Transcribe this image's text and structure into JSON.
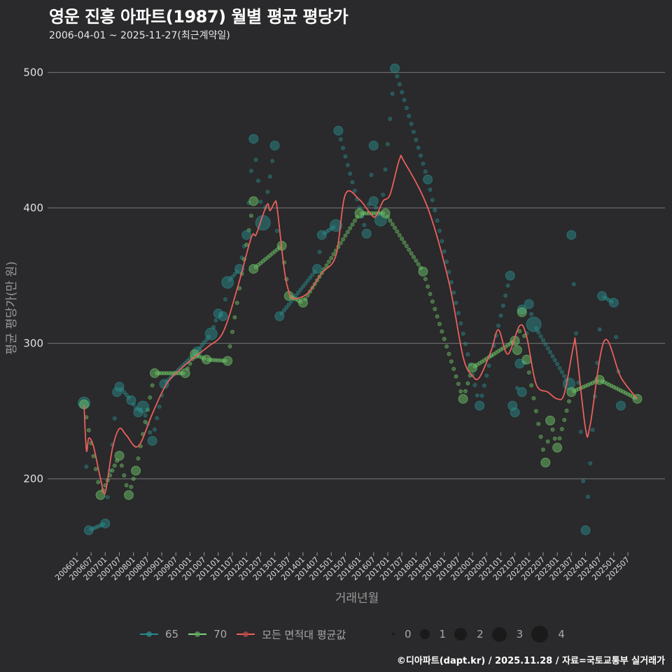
{
  "header": {
    "title": "영운 진흥 아파트(1987) 월별 평균 평당가",
    "subtitle": "2006-04-01 ~ 2025-11-27(최근계약일)"
  },
  "axes": {
    "y_title": "평균 평당가(만 원)",
    "x_title": "거래년월",
    "y_ticks": [
      "200",
      "300",
      "400",
      "500"
    ],
    "x_ticks": [
      "200601",
      "200607",
      "200701",
      "200707",
      "200801",
      "200807",
      "200901",
      "200907",
      "201001",
      "201007",
      "201101",
      "201107",
      "201201",
      "201207",
      "201301",
      "201307",
      "201401",
      "201407",
      "201501",
      "201507",
      "201601",
      "201607",
      "201701",
      "201707",
      "201801",
      "201807",
      "201901",
      "201907",
      "202001",
      "202007",
      "202101",
      "202107",
      "202201",
      "202207",
      "202301",
      "202307",
      "202401",
      "202407",
      "202501",
      "202507"
    ]
  },
  "legend": {
    "series": [
      {
        "label": "65",
        "color": "#2a8a8a"
      },
      {
        "label": "70",
        "color": "#7fd07a"
      },
      {
        "label": "모든 면적대 평균값",
        "color": "#e8605c"
      }
    ],
    "sizes": [
      "0",
      "1",
      "2",
      "3",
      "4"
    ]
  },
  "footer": {
    "credit": "©디아파트(dapt.kr) / 2025.11.28 / 자료=국토교통부 실거래가"
  },
  "colors": {
    "background": "#2a292b",
    "grid": "#6a6a6a",
    "series_65": "#2a8a8a",
    "series_70": "#7fd07a",
    "average": "#e8605c"
  },
  "chart_data": {
    "type": "scatter",
    "title": "영운 진흥 아파트(1987) 월별 평균 평당가",
    "subtitle": "2006-04-01 ~ 2025-11-27(최근계약일)",
    "xlabel": "거래년월",
    "ylabel": "평균 평당가(만 원)",
    "ylim": [
      145,
      515
    ],
    "y_ticks": [
      200,
      300,
      400,
      500
    ],
    "grid": true,
    "legend_position": "bottom",
    "size_legend": [
      0,
      1,
      2,
      3,
      4
    ],
    "series": [
      {
        "name": "65",
        "color": "#2a8a8a",
        "points": [
          {
            "x": "2006-04",
            "y": 256,
            "size": 2
          },
          {
            "x": "2006-06",
            "y": 162,
            "size": 1
          },
          {
            "x": "2007-01",
            "y": 167,
            "size": 1
          },
          {
            "x": "2007-06",
            "y": 264,
            "size": 1
          },
          {
            "x": "2007-07",
            "y": 268,
            "size": 1
          },
          {
            "x": "2007-12",
            "y": 258,
            "size": 1
          },
          {
            "x": "2008-03",
            "y": 249,
            "size": 1
          },
          {
            "x": "2008-05",
            "y": 253,
            "size": 2
          },
          {
            "x": "2008-09",
            "y": 228,
            "size": 1
          },
          {
            "x": "2009-02",
            "y": 270,
            "size": 1
          },
          {
            "x": "2010-04",
            "y": 294,
            "size": 1
          },
          {
            "x": "2010-10",
            "y": 307,
            "size": 2
          },
          {
            "x": "2011-01",
            "y": 322,
            "size": 1
          },
          {
            "x": "2011-03",
            "y": 320,
            "size": 1
          },
          {
            "x": "2011-05",
            "y": 345,
            "size": 2
          },
          {
            "x": "2011-10",
            "y": 355,
            "size": 1
          },
          {
            "x": "2012-01",
            "y": 380,
            "size": 1
          },
          {
            "x": "2012-04",
            "y": 451,
            "size": 1
          },
          {
            "x": "2012-08",
            "y": 389,
            "size": 3
          },
          {
            "x": "2013-01",
            "y": 446,
            "size": 1
          },
          {
            "x": "2013-03",
            "y": 320,
            "size": 1
          },
          {
            "x": "2014-07",
            "y": 355,
            "size": 1
          },
          {
            "x": "2014-09",
            "y": 380,
            "size": 1
          },
          {
            "x": "2015-03",
            "y": 387,
            "size": 2
          },
          {
            "x": "2015-04",
            "y": 457,
            "size": 1
          },
          {
            "x": "2016-04",
            "y": 381,
            "size": 1
          },
          {
            "x": "2016-07",
            "y": 446,
            "size": 1
          },
          {
            "x": "2016-07",
            "y": 405,
            "size": 1
          },
          {
            "x": "2016-10",
            "y": 391,
            "size": 2
          },
          {
            "x": "2017-04",
            "y": 503,
            "size": 1
          },
          {
            "x": "2018-06",
            "y": 421,
            "size": 1
          },
          {
            "x": "2020-04",
            "y": 254,
            "size": 1
          },
          {
            "x": "2021-05",
            "y": 350,
            "size": 1
          },
          {
            "x": "2021-06",
            "y": 254,
            "size": 1
          },
          {
            "x": "2021-07",
            "y": 249,
            "size": 1
          },
          {
            "x": "2021-09",
            "y": 285,
            "size": 1
          },
          {
            "x": "2021-10",
            "y": 325,
            "size": 1
          },
          {
            "x": "2021-10",
            "y": 264,
            "size": 1
          },
          {
            "x": "2022-01",
            "y": 329,
            "size": 1
          },
          {
            "x": "2022-03",
            "y": 314,
            "size": 3
          },
          {
            "x": "2023-06",
            "y": 270,
            "size": 2
          },
          {
            "x": "2023-07",
            "y": 380,
            "size": 1
          },
          {
            "x": "2024-01",
            "y": 162,
            "size": 1
          },
          {
            "x": "2024-08",
            "y": 335,
            "size": 1
          },
          {
            "x": "2025-01",
            "y": 330,
            "size": 1
          },
          {
            "x": "2025-04",
            "y": 254,
            "size": 1
          }
        ]
      },
      {
        "name": "70",
        "color": "#7fd07a",
        "points": [
          {
            "x": "2006-04",
            "y": 255,
            "size": 1
          },
          {
            "x": "2006-11",
            "y": 188,
            "size": 1
          },
          {
            "x": "2007-07",
            "y": 217,
            "size": 1
          },
          {
            "x": "2007-11",
            "y": 188,
            "size": 1
          },
          {
            "x": "2008-02",
            "y": 206,
            "size": 1
          },
          {
            "x": "2008-10",
            "y": 278,
            "size": 1
          },
          {
            "x": "2009-11",
            "y": 278,
            "size": 1
          },
          {
            "x": "2010-03",
            "y": 292,
            "size": 1
          },
          {
            "x": "2010-08",
            "y": 288,
            "size": 1
          },
          {
            "x": "2011-05",
            "y": 287,
            "size": 1
          },
          {
            "x": "2012-04",
            "y": 405,
            "size": 1
          },
          {
            "x": "2012-04",
            "y": 355,
            "size": 1
          },
          {
            "x": "2013-04",
            "y": 372,
            "size": 1
          },
          {
            "x": "2013-07",
            "y": 335,
            "size": 1
          },
          {
            "x": "2014-01",
            "y": 330,
            "size": 1
          },
          {
            "x": "2016-01",
            "y": 396,
            "size": 1
          },
          {
            "x": "2016-12",
            "y": 396,
            "size": 1
          },
          {
            "x": "2018-04",
            "y": 353,
            "size": 1
          },
          {
            "x": "2019-09",
            "y": 259,
            "size": 1
          },
          {
            "x": "2020-01",
            "y": 282,
            "size": 1
          },
          {
            "x": "2021-07",
            "y": 302,
            "size": 1
          },
          {
            "x": "2021-08",
            "y": 295,
            "size": 1
          },
          {
            "x": "2021-10",
            "y": 323,
            "size": 1
          },
          {
            "x": "2021-12",
            "y": 288,
            "size": 1
          },
          {
            "x": "2022-08",
            "y": 212,
            "size": 1
          },
          {
            "x": "2022-10",
            "y": 243,
            "size": 1
          },
          {
            "x": "2023-01",
            "y": 223,
            "size": 1
          },
          {
            "x": "2023-07",
            "y": 264,
            "size": 1
          },
          {
            "x": "2024-07",
            "y": 273,
            "size": 1
          },
          {
            "x": "2025-11",
            "y": 259,
            "size": 1
          }
        ]
      },
      {
        "name": "모든 면적대 평균값",
        "color": "#e8605c",
        "type": "line",
        "points": [
          {
            "x": "2006-04",
            "y": 254
          },
          {
            "x": "2006-05",
            "y": 221
          },
          {
            "x": "2006-06",
            "y": 230
          },
          {
            "x": "2006-08",
            "y": 224
          },
          {
            "x": "2006-11",
            "y": 200
          },
          {
            "x": "2007-01",
            "y": 190
          },
          {
            "x": "2007-04",
            "y": 222
          },
          {
            "x": "2007-07",
            "y": 237
          },
          {
            "x": "2007-10",
            "y": 232
          },
          {
            "x": "2008-03",
            "y": 224
          },
          {
            "x": "2008-09",
            "y": 248
          },
          {
            "x": "2009-03",
            "y": 270
          },
          {
            "x": "2009-09",
            "y": 281
          },
          {
            "x": "2010-03",
            "y": 290
          },
          {
            "x": "2010-09",
            "y": 298
          },
          {
            "x": "2011-03",
            "y": 308
          },
          {
            "x": "2011-09",
            "y": 340
          },
          {
            "x": "2012-03",
            "y": 378
          },
          {
            "x": "2012-05",
            "y": 380
          },
          {
            "x": "2012-08",
            "y": 395
          },
          {
            "x": "2012-10",
            "y": 403
          },
          {
            "x": "2012-11",
            "y": 398
          },
          {
            "x": "2013-01",
            "y": 404
          },
          {
            "x": "2013-02",
            "y": 400
          },
          {
            "x": "2013-05",
            "y": 355
          },
          {
            "x": "2013-07",
            "y": 338
          },
          {
            "x": "2013-09",
            "y": 333
          },
          {
            "x": "2014-03",
            "y": 337
          },
          {
            "x": "2014-09",
            "y": 352
          },
          {
            "x": "2015-03",
            "y": 365
          },
          {
            "x": "2015-07",
            "y": 410
          },
          {
            "x": "2016-01",
            "y": 406
          },
          {
            "x": "2016-06",
            "y": 395
          },
          {
            "x": "2016-08",
            "y": 394
          },
          {
            "x": "2016-11",
            "y": 405
          },
          {
            "x": "2017-02",
            "y": 410
          },
          {
            "x": "2017-06",
            "y": 436
          },
          {
            "x": "2017-08",
            "y": 434
          },
          {
            "x": "2018-06",
            "y": 400
          },
          {
            "x": "2019-03",
            "y": 345
          },
          {
            "x": "2019-09",
            "y": 290
          },
          {
            "x": "2020-01",
            "y": 276
          },
          {
            "x": "2020-04",
            "y": 275
          },
          {
            "x": "2020-09",
            "y": 295
          },
          {
            "x": "2020-12",
            "y": 310
          },
          {
            "x": "2021-04",
            "y": 292
          },
          {
            "x": "2021-09",
            "y": 313
          },
          {
            "x": "2021-12",
            "y": 305
          },
          {
            "x": "2022-04",
            "y": 270
          },
          {
            "x": "2022-09",
            "y": 264
          },
          {
            "x": "2023-01",
            "y": 259
          },
          {
            "x": "2023-04",
            "y": 263
          },
          {
            "x": "2023-08",
            "y": 299
          },
          {
            "x": "2023-09",
            "y": 297
          },
          {
            "x": "2024-01",
            "y": 237
          },
          {
            "x": "2024-03",
            "y": 240
          },
          {
            "x": "2024-09",
            "y": 302
          },
          {
            "x": "2025-04",
            "y": 275
          },
          {
            "x": "2025-11",
            "y": 259
          }
        ]
      }
    ]
  }
}
